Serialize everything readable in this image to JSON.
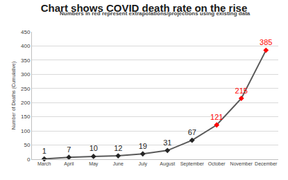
{
  "chart_data": {
    "type": "line",
    "title": "Chart shows COVID death rate on the rise",
    "subtitle": "Numbers in red represent extrapolations/projections using existing data",
    "y_label": "Number of Deaths (Cumulative)",
    "categories": [
      "March",
      "April",
      "May",
      "June",
      "July",
      "August",
      "September",
      "October",
      "November",
      "December"
    ],
    "values": [
      1,
      7,
      10,
      12,
      19,
      31,
      67,
      121,
      215,
      385
    ],
    "color": "#595959",
    "colors": [
      "#262626",
      "#262626",
      "#262626",
      "#262626",
      "#262626",
      "#262626",
      "#262626",
      "#ff0000",
      "#ff0000",
      "#ff0000"
    ],
    "marker": "diamond",
    "line_style": "solid",
    "data_labels": true,
    "ylim": [
      0,
      450
    ],
    "yticks": [
      0,
      50,
      100,
      150,
      200,
      250,
      300,
      350,
      400,
      450
    ],
    "grid": true
  }
}
